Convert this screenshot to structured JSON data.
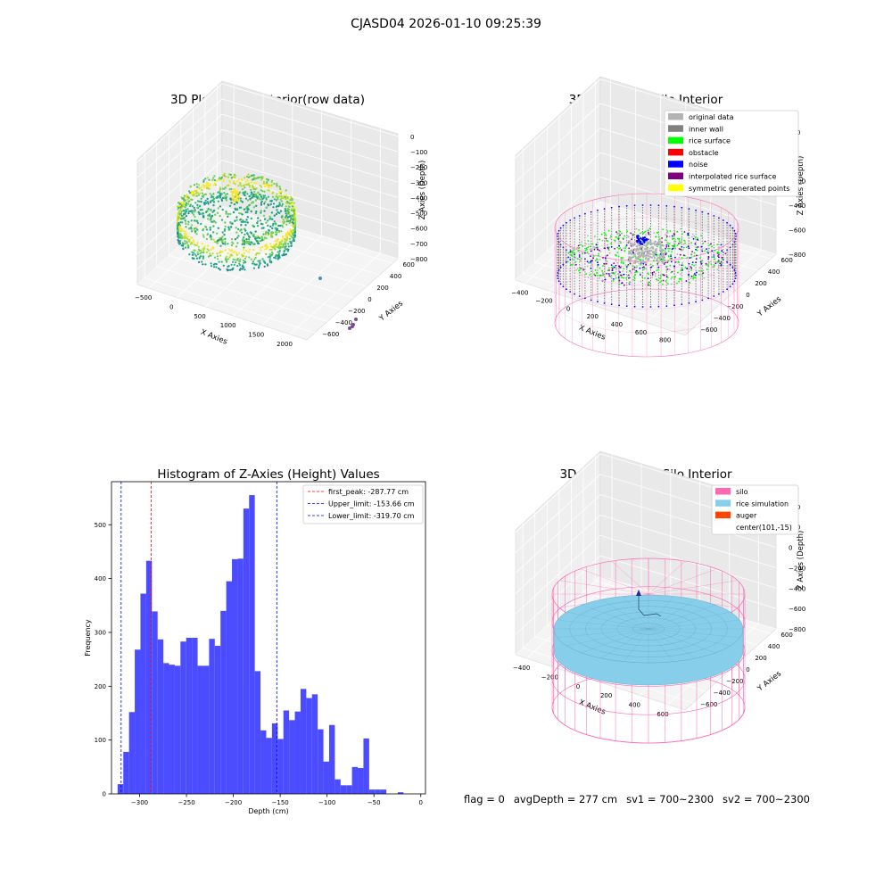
{
  "suptitle": "CJASD04 2026-01-10 09:25:39",
  "footer": {
    "flag": "flag = 0",
    "avg_depth": "avgDepth = 277 cm",
    "sv1": "sv1 = 700~2300",
    "sv2": "sv2 = 700~2300"
  },
  "colors": {
    "histogram_bar": "#4b4bff",
    "peak_line": "#ff0000",
    "limit_line": "#0000ff",
    "silo_wire": "#ff69b4",
    "rice_surface": "#87ceeb",
    "auger": "#ff4500",
    "original_data": "#b3b3b3",
    "inner_wall": "#808080",
    "rice_green": "#00ff00",
    "obstacle": "#ff0000",
    "noise": "#0000ff",
    "interpolated": "#800080",
    "symmetric": "#ffff00"
  },
  "chart_data": [
    {
      "type": "scatter",
      "projection": "3d",
      "title": "3D Plot of Silo Interior(row data)",
      "xlabel": "X Axies",
      "ylabel": "Y Axies",
      "zlabel": "Z Axies (Depth)",
      "x_ticks": [
        "−500",
        "0",
        "500",
        "1000",
        "1500",
        "2000"
      ],
      "y_ticks": [
        "600",
        "400",
        "200",
        "0",
        "−200",
        "−400",
        "−600"
      ],
      "z_ticks": [
        "0",
        "−100",
        "−200",
        "−300",
        "−400",
        "−500",
        "−600",
        "−700",
        "−800"
      ],
      "colormap": "viridis"
    },
    {
      "type": "scatter",
      "projection": "3d",
      "title": "3D classify of Silo Interior",
      "xlabel": "X Axies",
      "ylabel": "Y Axies",
      "zlabel": "Z Axies (Depth)",
      "x_ticks": [
        "−400",
        "−200",
        "0",
        "200",
        "400",
        "600",
        "800"
      ],
      "y_ticks": [
        "600",
        "400",
        "200",
        "0",
        "−200",
        "−400",
        "−600"
      ],
      "z_ticks": [
        "200",
        "0",
        "−200",
        "−400",
        "−600",
        "−800"
      ],
      "legend": [
        "original data",
        "inner wall",
        "rice surface",
        "obstacle",
        "noise",
        "interpolated rice surface",
        "symmetric generated points"
      ],
      "legend_position": "top-right"
    },
    {
      "type": "bar",
      "title": "Histogram of Z-Axies (Height) Values",
      "xlabel": "Depth (cm)",
      "ylabel": "Frequency",
      "xlim": [
        -330,
        5
      ],
      "ylim": [
        0,
        580
      ],
      "x_ticks": [
        -300,
        -250,
        -200,
        -150,
        -100,
        -50,
        0
      ],
      "x_tick_labels": [
        "−300",
        "−250",
        "−200",
        "−150",
        "−100",
        "−50",
        "0"
      ],
      "y_ticks": [
        0,
        100,
        200,
        300,
        400,
        500
      ],
      "bin_width": 6.1,
      "bin_start": -323.5,
      "values": [
        18,
        78,
        152,
        268,
        372,
        433,
        339,
        287,
        243,
        240,
        238,
        283,
        290,
        290,
        238,
        238,
        288,
        275,
        340,
        395,
        436,
        437,
        530,
        555,
        228,
        118,
        104,
        131,
        102,
        155,
        137,
        153,
        195,
        178,
        185,
        120,
        60,
        128,
        27,
        16,
        16,
        50,
        48,
        103,
        8,
        8,
        8,
        0,
        0,
        3
      ],
      "lines": [
        {
          "name": "first_peak: -287.77 cm",
          "x": -287.77,
          "style": "red-dashed"
        },
        {
          "name": "Upper_limit: -153.66 cm",
          "x": -153.66,
          "style": "blue-dashed"
        },
        {
          "name": "Lower_limit: -319.70 cm",
          "x": -319.7,
          "style": "blue-dashed"
        }
      ],
      "legend_position": "top-right"
    },
    {
      "type": "scatter",
      "projection": "3d",
      "title": "3D simulation of Silo Interior",
      "xlabel": "X Axies",
      "ylabel": "Y Axies",
      "zlabel": "Z Axies (Depth)",
      "x_ticks": [
        "−400",
        "−200",
        "0",
        "200",
        "400",
        "600"
      ],
      "y_ticks": [
        "600",
        "400",
        "200",
        "0",
        "−200",
        "−400",
        "−600"
      ],
      "z_ticks": [
        "400",
        "200",
        "0",
        "−200",
        "−400",
        "−600",
        "−800"
      ],
      "legend": [
        "silo",
        "rice simulation",
        "auger",
        "center(101,-15)"
      ],
      "legend_position": "top-right"
    }
  ]
}
